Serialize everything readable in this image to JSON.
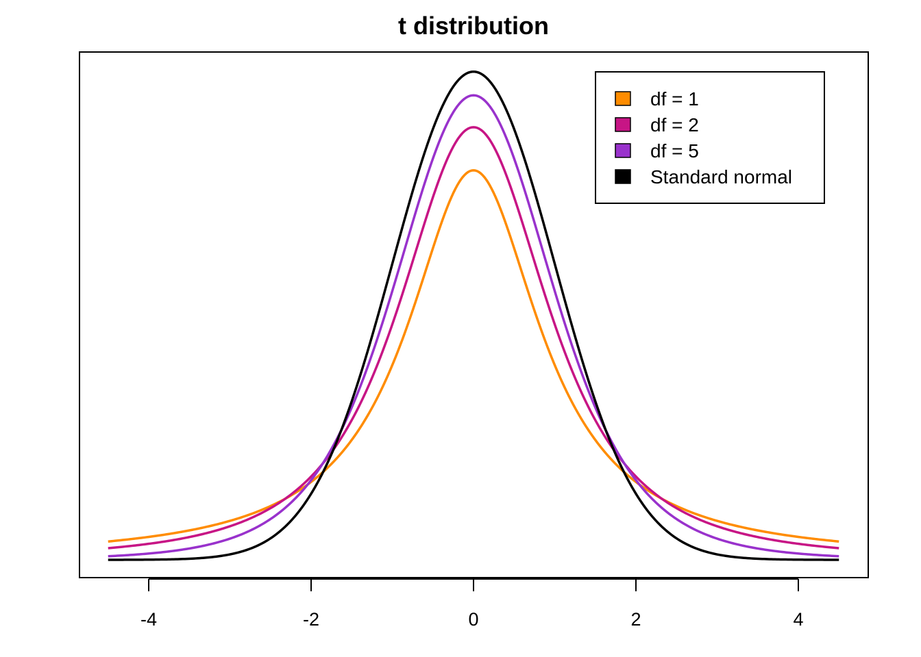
{
  "chart_data": {
    "type": "line",
    "title": "t distribution",
    "xlabel": "",
    "ylabel": "",
    "xlim": [
      -4.5,
      4.5
    ],
    "ylim": [
      0,
      0.4
    ],
    "x_ticks": [
      "-4",
      "-2",
      "0",
      "2",
      "4"
    ],
    "y_axis_shown": false,
    "grid": false,
    "legend_position": "top-right",
    "x_range": [
      -4.5,
      4.5
    ],
    "series": [
      {
        "name": "df = 1",
        "df": 1,
        "color": "#FF8C00"
      },
      {
        "name": "df = 2",
        "df": 2,
        "color": "#C71585"
      },
      {
        "name": "df = 5",
        "df": 5,
        "color": "#9932CC"
      },
      {
        "name": "Standard normal",
        "df": null,
        "color": "#000000"
      }
    ]
  }
}
